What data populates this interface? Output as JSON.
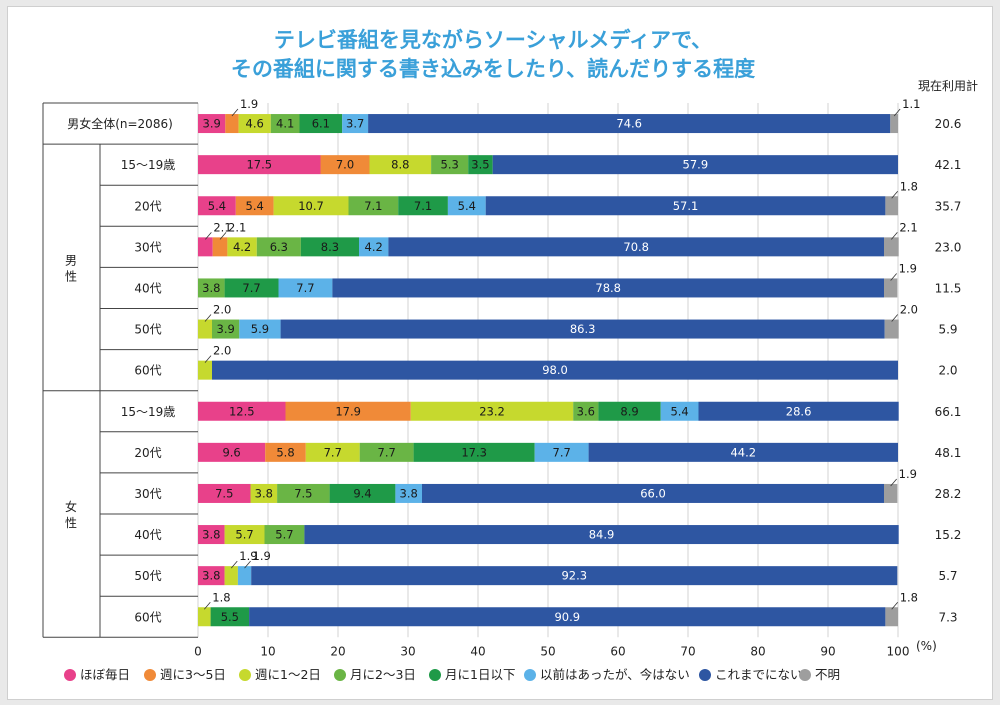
{
  "chart_data": {
    "type": "bar",
    "orientation": "horizontal-stacked-100",
    "title": [
      "テレビ番組を見ながらソーシャルメディアで、",
      "その番組に関する書き込みをしたり、読んだりする程度"
    ],
    "total_header": "現在利用計",
    "x_ticks": [
      "0",
      "10",
      "20",
      "30",
      "40",
      "50",
      "60",
      "70",
      "80",
      "90",
      "100"
    ],
    "x_unit": "(%)",
    "xlim": [
      0,
      100
    ],
    "groups": [
      {
        "name": "",
        "label_lines": []
      },
      {
        "name": "男性",
        "label_lines": [
          "男",
          "性"
        ]
      },
      {
        "name": "女性",
        "label_lines": [
          "女",
          "性"
        ]
      }
    ],
    "series": [
      {
        "name": "ほぼ毎日",
        "color": "#e8418a"
      },
      {
        "name": "週に3〜5日",
        "color": "#f08a38"
      },
      {
        "name": "週に1〜2日",
        "color": "#c6d92e"
      },
      {
        "name": "月に2〜3日",
        "color": "#6ab545"
      },
      {
        "name": "月に1日以下",
        "color": "#1f9a48"
      },
      {
        "name": "以前はあったが、今はない",
        "color": "#5cb2e8"
      },
      {
        "name": "これまでにない",
        "color": "#2e56a2"
      },
      {
        "name": "不明",
        "color": "#9e9e9e"
      }
    ],
    "rows": [
      {
        "label": "男女全体(n=2086)",
        "group": 0,
        "values": [
          3.9,
          1.9,
          4.6,
          4.1,
          6.1,
          3.7,
          74.6,
          1.1
        ],
        "total": "20.6"
      },
      {
        "label": "15〜19歳",
        "group": 1,
        "values": [
          17.5,
          7.0,
          8.8,
          5.3,
          3.5,
          0,
          57.9,
          0
        ],
        "total": "42.1"
      },
      {
        "label": "20代",
        "group": 1,
        "values": [
          5.4,
          5.4,
          10.7,
          7.1,
          7.1,
          5.4,
          57.1,
          1.8
        ],
        "total": "35.7"
      },
      {
        "label": "30代",
        "group": 1,
        "values": [
          2.1,
          2.1,
          4.2,
          6.3,
          8.3,
          4.2,
          70.8,
          2.1
        ],
        "total": "23.0"
      },
      {
        "label": "40代",
        "group": 1,
        "values": [
          0,
          0,
          0,
          3.8,
          7.7,
          7.7,
          78.8,
          1.9
        ],
        "total": "11.5"
      },
      {
        "label": "50代",
        "group": 1,
        "values": [
          0,
          0,
          2.0,
          3.9,
          0,
          5.9,
          86.3,
          2.0
        ],
        "total": "5.9"
      },
      {
        "label": "60代",
        "group": 1,
        "values": [
          0,
          0,
          2.0,
          0,
          0,
          0,
          98.0,
          0
        ],
        "total": "2.0"
      },
      {
        "label": "15〜19歳",
        "group": 2,
        "values": [
          12.5,
          17.9,
          23.2,
          3.6,
          8.9,
          5.4,
          28.6,
          0
        ],
        "total": "66.1"
      },
      {
        "label": "20代",
        "group": 2,
        "values": [
          9.6,
          5.8,
          7.7,
          7.7,
          17.3,
          7.7,
          44.2,
          0
        ],
        "total": "48.1"
      },
      {
        "label": "30代",
        "group": 2,
        "values": [
          7.5,
          0,
          3.8,
          7.5,
          9.4,
          3.8,
          66.0,
          1.9
        ],
        "total": "28.2"
      },
      {
        "label": "40代",
        "group": 2,
        "values": [
          3.8,
          0,
          5.7,
          5.7,
          0,
          0,
          84.9,
          0
        ],
        "total": "15.2"
      },
      {
        "label": "50代",
        "group": 2,
        "values": [
          3.8,
          0,
          1.9,
          0,
          0,
          1.9,
          92.3,
          0
        ],
        "total": "5.7"
      },
      {
        "label": "60代",
        "group": 2,
        "values": [
          0,
          0,
          1.8,
          0,
          5.5,
          0,
          90.9,
          1.8
        ],
        "total": "7.3"
      }
    ]
  }
}
